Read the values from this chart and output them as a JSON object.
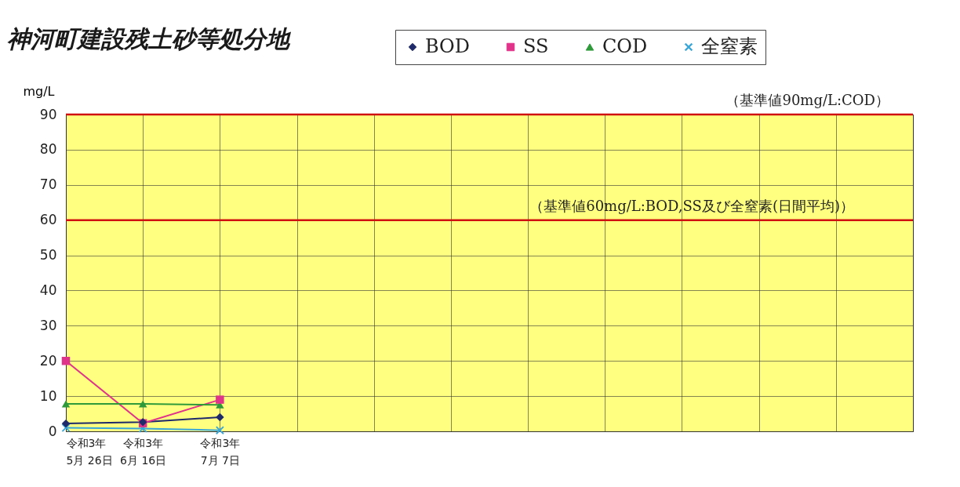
{
  "chart_data": {
    "type": "line",
    "title": "神河町建設残土砂等処分地",
    "ylabel": "mg/L",
    "categories": [
      "令和3年\n5月 26日",
      "令和3年\n6月 16日",
      "令和3年\n7月  7日",
      null,
      null,
      null,
      null,
      null,
      null,
      null,
      null,
      null
    ],
    "series": [
      {
        "name": "BOD",
        "color": "#1f2a6b",
        "marker": "diamond",
        "values": [
          2.2,
          2.6,
          4,
          null,
          null,
          null,
          null,
          null,
          null,
          null,
          null,
          null
        ]
      },
      {
        "name": "SS",
        "color": "#e0338a",
        "marker": "square",
        "values": [
          20,
          2.3,
          9,
          null,
          null,
          null,
          null,
          null,
          null,
          null,
          null,
          null
        ]
      },
      {
        "name": "COD",
        "color": "#2e9a3a",
        "marker": "triangle",
        "values": [
          7.8,
          7.8,
          7.5,
          null,
          null,
          null,
          null,
          null,
          null,
          null,
          null,
          null
        ]
      },
      {
        "name": "全窒素",
        "color": "#3aa6d8",
        "marker": "cross",
        "values": [
          1,
          0.8,
          0.3,
          null,
          null,
          null,
          null,
          null,
          null,
          null,
          null,
          null
        ]
      }
    ],
    "ylim": [
      0,
      90
    ],
    "yticks": [
      0,
      10,
      20,
      30,
      40,
      50,
      60,
      70,
      80,
      90
    ],
    "grid": true,
    "legend": "top right",
    "ref_lines": [
      {
        "axis": "y",
        "value": 90,
        "label": "（基準値90mg/L:COD）",
        "color": "#d01010"
      },
      {
        "axis": "y",
        "value": 60,
        "label": "（基準値60mg/L:BOD,SS及び全窒素(日間平均)）",
        "color": "#d01010"
      }
    ]
  }
}
